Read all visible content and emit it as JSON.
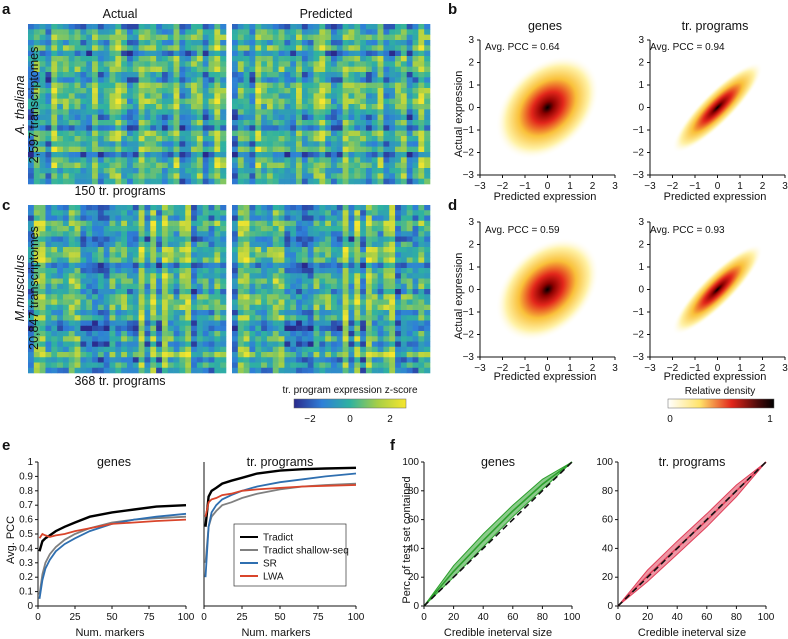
{
  "panels": {
    "a": "a",
    "b": "b",
    "c": "c",
    "d": "d",
    "e": "e",
    "f": "f"
  },
  "heatmaps": {
    "actual_title": "Actual",
    "predicted_title": "Predicted",
    "a_species": "A. thaliana",
    "a_count": "2,597 transcriptomes",
    "a_xlabel": "150 tr. programs",
    "c_species": "M.musculus",
    "c_count": "20,847 transcriptomes",
    "c_xlabel": "368 tr. programs",
    "colorbar_title": "tr. program expression z-score",
    "colorbar_ticks": [
      "−2",
      "0",
      "2"
    ]
  },
  "density": {
    "col_titles": [
      "genes",
      "tr. programs"
    ],
    "pcc_labels": [
      "Avg. PCC = 0.64",
      "Avg. PCC = 0.94",
      "Avg. PCC = 0.59",
      "Avg. PCC = 0.93"
    ],
    "xlabel": "Predicted expression",
    "ylabel": "Actual expression",
    "ticks": [
      "−3",
      "−2",
      "−1",
      "0",
      "1",
      "2",
      "3"
    ],
    "colorbar_title": "Relative density",
    "colorbar_ticks": [
      "0",
      "1"
    ]
  },
  "colors": {
    "tradict": "#000000",
    "shallow": "#808080",
    "sr": "#2f6fb0",
    "lwa": "#d9452b",
    "f_genes": "#2ca02c",
    "f_programs": "#e0405a"
  },
  "chart_data": [
    {
      "panel": "e-genes",
      "type": "line",
      "title": "genes",
      "xlabel": "Num. markers",
      "ylabel": "Avg. PCC",
      "xlim": [
        0,
        100
      ],
      "ylim": [
        0,
        1
      ],
      "xticks": [
        "0",
        "25",
        "50",
        "75",
        "100"
      ],
      "yticks": [
        "0",
        "0.1",
        "0.2",
        "0.3",
        "0.4",
        "0.5",
        "0.6",
        "0.7",
        "0.8",
        "0.9",
        "1"
      ],
      "x": [
        1,
        3,
        5,
        8,
        12,
        18,
        25,
        35,
        50,
        65,
        80,
        100
      ],
      "series": [
        {
          "name": "Tradict",
          "color": "#000000",
          "values": [
            0.38,
            0.45,
            0.47,
            0.49,
            0.52,
            0.55,
            0.58,
            0.62,
            0.65,
            0.67,
            0.69,
            0.7
          ]
        },
        {
          "name": "Tradict shallow-seq",
          "color": "#808080",
          "values": [
            0.08,
            0.22,
            0.3,
            0.36,
            0.41,
            0.46,
            0.5,
            0.54,
            0.58,
            0.6,
            0.61,
            0.62
          ]
        },
        {
          "name": "SR",
          "color": "#2f6fb0",
          "values": [
            0.05,
            0.18,
            0.26,
            0.32,
            0.38,
            0.43,
            0.47,
            0.52,
            0.57,
            0.6,
            0.62,
            0.64
          ]
        },
        {
          "name": "LWA",
          "color": "#d9452b",
          "values": [
            0.47,
            0.5,
            0.49,
            0.48,
            0.49,
            0.5,
            0.52,
            0.54,
            0.57,
            0.58,
            0.59,
            0.6
          ]
        }
      ]
    },
    {
      "panel": "e-programs",
      "type": "line",
      "title": "tr. programs",
      "xlabel": "Num. markers",
      "xlim": [
        0,
        100
      ],
      "ylim": [
        0,
        1
      ],
      "xticks": [
        "0",
        "25",
        "50",
        "75",
        "100"
      ],
      "x": [
        1,
        3,
        5,
        8,
        12,
        18,
        25,
        35,
        50,
        65,
        80,
        100
      ],
      "series": [
        {
          "name": "Tradict",
          "color": "#000000",
          "values": [
            0.55,
            0.76,
            0.8,
            0.82,
            0.85,
            0.87,
            0.89,
            0.92,
            0.94,
            0.95,
            0.955,
            0.96
          ]
        },
        {
          "name": "Tradict shallow-seq",
          "color": "#808080",
          "values": [
            0.3,
            0.55,
            0.62,
            0.66,
            0.7,
            0.72,
            0.75,
            0.78,
            0.81,
            0.83,
            0.84,
            0.85
          ]
        },
        {
          "name": "SR",
          "color": "#2f6fb0",
          "values": [
            0.2,
            0.55,
            0.65,
            0.7,
            0.74,
            0.77,
            0.8,
            0.83,
            0.86,
            0.88,
            0.9,
            0.92
          ]
        },
        {
          "name": "LWA",
          "color": "#d9452b",
          "values": [
            0.62,
            0.72,
            0.74,
            0.75,
            0.77,
            0.78,
            0.8,
            0.81,
            0.82,
            0.83,
            0.835,
            0.84
          ]
        }
      ],
      "legend": [
        "Tradict",
        "Tradict shallow-seq",
        "SR",
        "LWA"
      ]
    },
    {
      "panel": "f-genes",
      "type": "area",
      "title": "genes",
      "xlabel": "Credible ineterval size",
      "ylabel": "Perc. of test set contained",
      "xlim": [
        0,
        100
      ],
      "ylim": [
        0,
        100
      ],
      "xticks": [
        "0",
        "20",
        "40",
        "60",
        "80",
        "100"
      ],
      "yticks": [
        "0",
        "20",
        "40",
        "60",
        "80",
        "100"
      ],
      "x": [
        0,
        20,
        40,
        60,
        80,
        100
      ],
      "band_low": [
        0,
        20,
        41,
        62,
        81,
        100
      ],
      "band_high": [
        0,
        28,
        50,
        70,
        88,
        100
      ],
      "diagonal": true
    },
    {
      "panel": "f-programs",
      "type": "area",
      "title": "tr. programs",
      "xlabel": "Credible ineterval size",
      "xlim": [
        0,
        100
      ],
      "ylim": [
        0,
        100
      ],
      "xticks": [
        "0",
        "20",
        "40",
        "60",
        "80",
        "100"
      ],
      "yticks": [
        "0",
        "20",
        "40",
        "60",
        "80",
        "100"
      ],
      "x": [
        0,
        20,
        40,
        60,
        80,
        100
      ],
      "band_low": [
        0,
        17,
        36,
        55,
        76,
        100
      ],
      "band_high": [
        0,
        25,
        45,
        64,
        84,
        100
      ],
      "diagonal": true
    }
  ]
}
